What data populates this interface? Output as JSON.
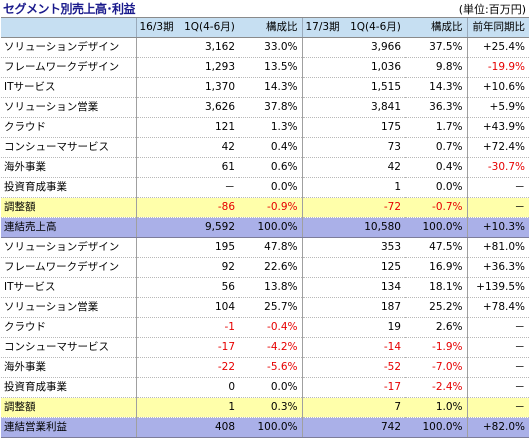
{
  "title": "セグメント別売上高･利益",
  "unit": "(単位:百万円)",
  "headers": [
    "",
    "16/3期　1Q(4-6月)",
    "構成比",
    "17/3期　1Q(4-6月)",
    "構成比",
    "前年同期比"
  ],
  "rows": [
    {
      "type": "data",
      "label": "ソリューションデザイン",
      "v1": "3,162",
      "p1": "33.0%",
      "v2": "3,966",
      "p2": "37.5%",
      "yoy": "+25.4%"
    },
    {
      "type": "data",
      "label": "フレームワークデザイン",
      "v1": "1,293",
      "p1": "13.5%",
      "v2": "1,036",
      "p2": "9.8%",
      "yoy": "-19.9%"
    },
    {
      "type": "data",
      "label": "ITサービス",
      "v1": "1,370",
      "p1": "14.3%",
      "v2": "1,515",
      "p2": "14.3%",
      "yoy": "+10.6%"
    },
    {
      "type": "data",
      "label": "ソリューション営業",
      "v1": "3,626",
      "p1": "37.8%",
      "v2": "3,841",
      "p2": "36.3%",
      "yoy": "+5.9%"
    },
    {
      "type": "data",
      "label": "クラウド",
      "v1": "121",
      "p1": "1.3%",
      "v2": "175",
      "p2": "1.7%",
      "yoy": "+43.9%"
    },
    {
      "type": "data",
      "label": "コンシューマサービス",
      "v1": "42",
      "p1": "0.4%",
      "v2": "73",
      "p2": "0.7%",
      "yoy": "+72.4%"
    },
    {
      "type": "data",
      "label": "海外事業",
      "v1": "61",
      "p1": "0.6%",
      "v2": "42",
      "p2": "0.4%",
      "yoy": "-30.7%"
    },
    {
      "type": "data",
      "label": "投資育成事業",
      "v1": "－",
      "p1": "0.0%",
      "v2": "1",
      "p2": "0.0%",
      "yoy": "－"
    },
    {
      "type": "adj",
      "label": "調整額",
      "v1": "-86",
      "p1": "-0.9%",
      "v2": "-72",
      "p2": "-0.7%",
      "yoy": "－"
    },
    {
      "type": "tot",
      "label": "連結売上高",
      "v1": "9,592",
      "p1": "100.0%",
      "v2": "10,580",
      "p2": "100.0%",
      "yoy": "+10.3%"
    },
    {
      "type": "data",
      "label": "ソリューションデザイン",
      "v1": "195",
      "p1": "47.8%",
      "v2": "353",
      "p2": "47.5%",
      "yoy": "+81.0%"
    },
    {
      "type": "data",
      "label": "フレームワークデザイン",
      "v1": "92",
      "p1": "22.6%",
      "v2": "125",
      "p2": "16.9%",
      "yoy": "+36.3%"
    },
    {
      "type": "data",
      "label": "ITサービス",
      "v1": "56",
      "p1": "13.8%",
      "v2": "134",
      "p2": "18.1%",
      "yoy": "+139.5%"
    },
    {
      "type": "data",
      "label": "ソリューション営業",
      "v1": "104",
      "p1": "25.7%",
      "v2": "187",
      "p2": "25.2%",
      "yoy": "+78.4%"
    },
    {
      "type": "data",
      "label": "クラウド",
      "v1": "-1",
      "p1": "-0.4%",
      "v2": "19",
      "p2": "2.6%",
      "yoy": "－"
    },
    {
      "type": "data",
      "label": "コンシューマサービス",
      "v1": "-17",
      "p1": "-4.2%",
      "v2": "-14",
      "p2": "-1.9%",
      "yoy": "－"
    },
    {
      "type": "data",
      "label": "海外事業",
      "v1": "-22",
      "p1": "-5.6%",
      "v2": "-52",
      "p2": "-7.0%",
      "yoy": "－"
    },
    {
      "type": "data",
      "label": "投資育成事業",
      "v1": "0",
      "p1": "0.0%",
      "v2": "-17",
      "p2": "-2.4%",
      "yoy": "－"
    },
    {
      "type": "adj",
      "label": "調整額",
      "v1": "1",
      "p1": "0.3%",
      "v2": "7",
      "p2": "1.0%",
      "yoy": "－"
    },
    {
      "type": "tot",
      "label": "連結営業利益",
      "v1": "408",
      "p1": "100.0%",
      "v2": "742",
      "p2": "100.0%",
      "yoy": "+82.0%"
    }
  ],
  "colors": {
    "header_bg": "#c6dff2",
    "adjust_bg": "#ffffaa",
    "total_bg": "#aab0e8",
    "negative": "#e60000",
    "title": "#1a1a8c"
  }
}
